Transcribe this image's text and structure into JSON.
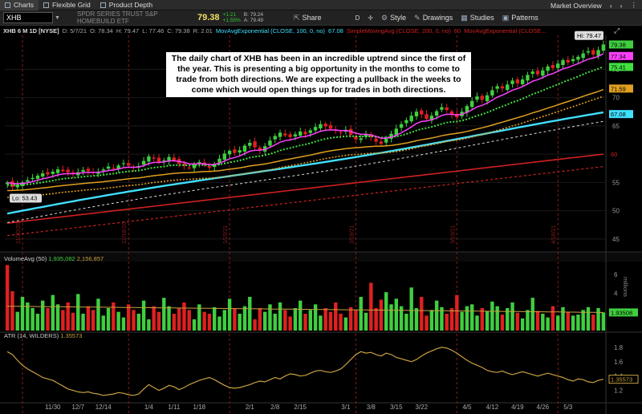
{
  "tabs": [
    {
      "label": "Charts",
      "active": true
    },
    {
      "label": "Flexible Grid",
      "active": false
    },
    {
      "label": "Product Depth",
      "active": false
    }
  ],
  "tab_right": {
    "market_overview": "Market Overview"
  },
  "toolbar": {
    "symbol": "XHB",
    "description": "SPDR SERIES TRUST S&P HOMEBUILD ETF",
    "last_price": "79.38",
    "change": "+1.21",
    "change_pct": "+1.55%",
    "bid": "B: 79.24",
    "ask": "A: 79.49",
    "share_label": "Share",
    "period_label": "D",
    "style_label": "Style",
    "drawings_label": "Drawings",
    "studies_label": "Studies",
    "patterns_label": "Patterns"
  },
  "study_line": {
    "title": "XHB 6 M 1D [NYSE]",
    "date": "D: 5/7/21",
    "open": "O: 78.34",
    "high": "H: 79.47",
    "low": "L: 77.46",
    "close": "C: 79.38",
    "range": "R: 2.01",
    "ma1": "MovAvgExponential (CLOSE, 100, 0, no)",
    "ma1_val": "67.08",
    "ma2": "SimpleMovingAvg (CLOSE, 200, 0, no)",
    "ma2_val": "60",
    "ma3": "MovAvgExponential (CLOSE..."
  },
  "annotation": "The daily chart of XHB has been in an incredible uptrend since the first of the year. This is presenting a big opportunity in the months to come to trade from both directions. We are expecting a pullback in the weeks to come which would open things up for trades in both directions.",
  "volume_label": {
    "name": "VolumeAvg (50)",
    "v1": "1,935,082",
    "v2": "2,156,857",
    "axis": "millions"
  },
  "atr_label": {
    "name": "ATR (14, WILDERS)",
    "value": "1.35573"
  },
  "colors": {
    "up": "#3fcf3f",
    "down": "#e02020",
    "ema8": "#ff40ff",
    "ema21": "#40e040",
    "ema50": "#e0a020",
    "ema100": "#40e0ff",
    "sma200": "#d02020",
    "atr": "#c8a040",
    "vol_avg": "#c8a040"
  },
  "chart_data": [
    {
      "type": "candlestick",
      "title": "XHB 6 M 1D [NYSE]",
      "x_ticks": [
        "11/30",
        "12/7",
        "12/14",
        "1/4",
        "1/11",
        "1/18",
        "2/1",
        "2/8",
        "2/15",
        "3/1",
        "3/8",
        "3/15",
        "3/22",
        "4/5",
        "4/12",
        "4/19",
        "4/26",
        "5/3"
      ],
      "y_ticks": [
        45,
        50,
        55,
        60,
        65,
        70,
        75
      ],
      "ylim": [
        43,
        81
      ],
      "price_labels": {
        "high": "Hi: 79.47",
        "low": "Lo: 53.43",
        "last": "79.38",
        "ema8": "77.34",
        "ema21": "75.41",
        "ema50": "71.59",
        "ema100": "67.08",
        "sma200": "60"
      },
      "vertical_markers": [
        "11/20/20",
        "12/18/20",
        "1/15/21",
        "2/19/21",
        "3/19/21",
        "4/16/21"
      ],
      "close_path": [
        55.0,
        54.2,
        54.6,
        55.0,
        55.4,
        55.8,
        56.2,
        56.6,
        56.4,
        56.9,
        57.3,
        57.0,
        56.8,
        56.5,
        56.8,
        57.2,
        57.0,
        56.7,
        56.9,
        57.3,
        57.8,
        57.5,
        58.0,
        58.4,
        58.0,
        57.6,
        57.9,
        58.8,
        59.6,
        59.2,
        58.6,
        58.9,
        59.5,
        58.9,
        58.3,
        57.9,
        57.5,
        58.1,
        58.6,
        58.1,
        57.6,
        58.3,
        59.2,
        60.1,
        60.6,
        60.2,
        60.7,
        61.5,
        62.0,
        61.2,
        60.7,
        61.4,
        62.4,
        63.2,
        63.8,
        63.3,
        63.0,
        63.5,
        64.0,
        63.5,
        64.2,
        64.8,
        65.3,
        64.9,
        64.5,
        64.1,
        63.8,
        64.3,
        63.4,
        62.6,
        62.8,
        63.5,
        63.0,
        62.2,
        61.8,
        62.8,
        63.6,
        64.5,
        65.3,
        66.0,
        66.8,
        67.5,
        67.0,
        66.2,
        66.8,
        67.6,
        68.3,
        67.8,
        67.0,
        66.5,
        67.5,
        68.5,
        69.4,
        70.2,
        69.6,
        70.4,
        71.3,
        72.0,
        71.6,
        72.3,
        73.0,
        72.5,
        73.2,
        74.0,
        74.6,
        74.1,
        74.8,
        75.5,
        75.2,
        76.0,
        76.6,
        76.2,
        76.8,
        77.2,
        77.8,
        78.2,
        77.6,
        78.4,
        79.38
      ],
      "ema100_path": [
        49.5,
        67.08
      ],
      "sma200_path": [
        47.8,
        60.0
      ]
    },
    {
      "type": "bar",
      "title": "VolumeAvg (50)",
      "y_ticks": [
        2,
        4,
        6
      ],
      "ylim": [
        0,
        7.2
      ],
      "last_label": "1.93508",
      "values": [
        7.0,
        4.2,
        2.0,
        3.6,
        3.0,
        2.4,
        1.8,
        3.2,
        2.4,
        3.8,
        2.8,
        2.2,
        3.0,
        1.9,
        3.9,
        1.8,
        2.6,
        2.2,
        3.4,
        1.6,
        2.4,
        3.0,
        2.0,
        1.4,
        2.8,
        2.2,
        1.8,
        3.2,
        1.2,
        2.6,
        2.0,
        3.5,
        2.6,
        1.8,
        2.4,
        3.0,
        2.2,
        1.2,
        2.8,
        2.0,
        1.8,
        2.5,
        1.5,
        2.2,
        3.4,
        2.4,
        1.8,
        2.6,
        3.6,
        1.2,
        2.4,
        2.0,
        2.8,
        1.8,
        3.0,
        2.2,
        1.5,
        2.4,
        3.2,
        1.8,
        2.2,
        2.8,
        1.6,
        2.4,
        2.0,
        3.0,
        1.8,
        1.4,
        2.5,
        2.2,
        3.6,
        1.9,
        5.1,
        2.4,
        3.3,
        4.1,
        2.8,
        3.4,
        2.6,
        1.8,
        4.6,
        2.4,
        3.6,
        1.6,
        2.2,
        3.2,
        2.5,
        1.8,
        2.4,
        3.8,
        2.0,
        2.6,
        2.8,
        1.6,
        2.4,
        2.1,
        3.1,
        2.6,
        1.7,
        2.4,
        3.0,
        1.9,
        1.3,
        2.2,
        3.5,
        2.1,
        1.8,
        1.4,
        2.6,
        1.6,
        2.5,
        2.0,
        1.6,
        1.7,
        2.2,
        2.5,
        1.7,
        2.4,
        1.935
      ],
      "avg_path": [
        2.6,
        1.93508
      ]
    },
    {
      "type": "line",
      "title": "ATR (14, WILDERS)",
      "y_ticks": [
        1.2,
        1.4,
        1.6,
        1.8
      ],
      "ylim": [
        1.05,
        1.9
      ],
      "last_label": "1.35573",
      "values": [
        1.74,
        1.7,
        1.62,
        1.55,
        1.5,
        1.46,
        1.42,
        1.38,
        1.36,
        1.34,
        1.3,
        1.26,
        1.22,
        1.2,
        1.18,
        1.17,
        1.18,
        1.16,
        1.15,
        1.13,
        1.14,
        1.15,
        1.17,
        1.16,
        1.14,
        1.13,
        1.15,
        1.22,
        1.28,
        1.24,
        1.2,
        1.23,
        1.27,
        1.25,
        1.21,
        1.24,
        1.28,
        1.31,
        1.34,
        1.36,
        1.38,
        1.35,
        1.31,
        1.27,
        1.24,
        1.23,
        1.24,
        1.26,
        1.28,
        1.31,
        1.33,
        1.32,
        1.35,
        1.38,
        1.36,
        1.4,
        1.43,
        1.42,
        1.4,
        1.41,
        1.44,
        1.47,
        1.48,
        1.46,
        1.45,
        1.47,
        1.5,
        1.56,
        1.63,
        1.7,
        1.74,
        1.72,
        1.73,
        1.7,
        1.68,
        1.72,
        1.7,
        1.66,
        1.64,
        1.62,
        1.6,
        1.63,
        1.68,
        1.72,
        1.75,
        1.78,
        1.8,
        1.79,
        1.76,
        1.72,
        1.67,
        1.62,
        1.58,
        1.55,
        1.52,
        1.48,
        1.46,
        1.45,
        1.47,
        1.44,
        1.42,
        1.44,
        1.46,
        1.44,
        1.42,
        1.4,
        1.42,
        1.44,
        1.42,
        1.4,
        1.38,
        1.35,
        1.33,
        1.36,
        1.35,
        1.32,
        1.31,
        1.34,
        1.35573
      ]
    }
  ]
}
